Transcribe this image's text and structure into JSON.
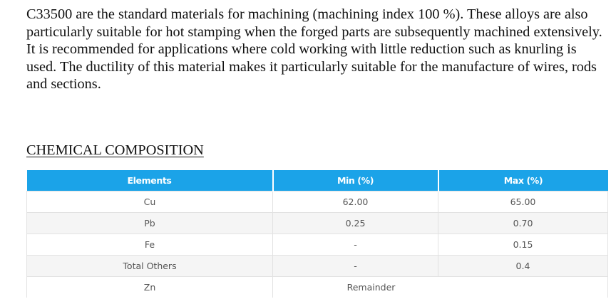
{
  "intro_text": "C33500 are the standard materials for machining (machining index 100 %). These alloys are also particularly suitable for hot stamping when the forged parts are subsequently machined extensively. It is recommended for applications where cold working with little reduction such as knurling is used. The ductility of this material makes it particularly suitable for the manufacture of wires, rods and sections.",
  "section_heading": "CHEMICAL COMPOSITION",
  "table": {
    "headers": [
      "Elements",
      "Min (%)",
      "Max (%)"
    ],
    "rows": [
      {
        "element": "Cu",
        "min": "62.00",
        "max": "65.00"
      },
      {
        "element": "Pb",
        "min": "0.25",
        "max": "0.70"
      },
      {
        "element": "Fe",
        "min": "-",
        "max": "0.15"
      },
      {
        "element": "Total Others",
        "min": "-",
        "max": "0.4"
      },
      {
        "element": "Zn",
        "merged": "Remainder"
      }
    ]
  },
  "colors": {
    "header_bg": "#1ba3e8",
    "header_text": "#ffffff",
    "row_alt_bg": "#f5f5f5",
    "cell_text": "#555555"
  }
}
